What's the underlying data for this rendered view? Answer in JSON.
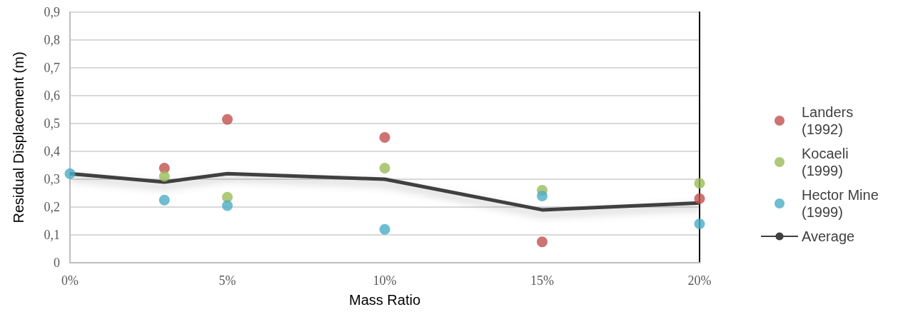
{
  "chart_data": {
    "type": "scatter",
    "xlabel": "Mass Ratio",
    "ylabel": "Residual Displacement (m)",
    "x": [
      0,
      3,
      5,
      10,
      15,
      20
    ],
    "series": [
      {
        "name": "Landers (1992)",
        "color": "#c0504d",
        "values": [
          null,
          0.34,
          0.515,
          0.45,
          0.075,
          0.23
        ]
      },
      {
        "name": "Kocaeli (1999)",
        "color": "#9bbb59",
        "values": [
          null,
          0.31,
          0.235,
          0.34,
          0.26,
          0.285
        ]
      },
      {
        "name": "Hector Mine (1999)",
        "color": "#4bacc6",
        "values": [
          0.32,
          0.225,
          0.205,
          0.12,
          0.24,
          0.14
        ]
      },
      {
        "name": "Average",
        "type": "line",
        "color": "#404040",
        "marker": "none",
        "values": [
          0.32,
          0.29,
          0.32,
          0.3,
          0.19,
          0.215
        ]
      }
    ],
    "xlim": [
      0,
      20
    ],
    "xticks": [
      {
        "value": 0,
        "label": "0%"
      },
      {
        "value": 5,
        "label": "5%"
      },
      {
        "value": 10,
        "label": "10%"
      },
      {
        "value": 15,
        "label": "15%"
      },
      {
        "value": 20,
        "label": "20%"
      }
    ],
    "ylim": [
      0,
      0.9
    ],
    "yticks": [
      0,
      {
        "value": 0.1,
        "label": "0,1"
      },
      {
        "value": 0.2,
        "label": "0,2"
      },
      {
        "value": 0.3,
        "label": "0,3"
      },
      {
        "value": 0.4,
        "label": "0,4"
      },
      {
        "value": 0.5,
        "label": "0,5"
      },
      {
        "value": 0.6,
        "label": "0,6"
      },
      {
        "value": 0.7,
        "label": "0,7"
      },
      {
        "value": 0.8,
        "label": "0,8"
      },
      {
        "value": 0.9,
        "label": "0,9"
      }
    ],
    "grid": "y",
    "legend": "right",
    "marker": "circle"
  }
}
